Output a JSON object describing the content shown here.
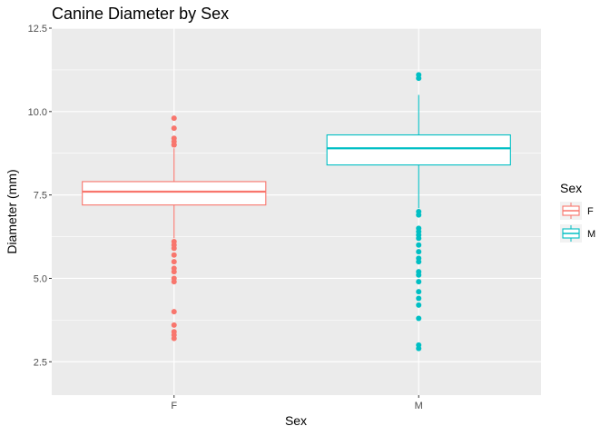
{
  "chart_data": {
    "type": "boxplot",
    "title": "Canine Diameter by Sex",
    "xlabel": "Sex",
    "ylabel": "Diameter (mm)",
    "categories": [
      "F",
      "M"
    ],
    "ylim": [
      1.5,
      12.5
    ],
    "yticks": [
      2.5,
      5.0,
      7.5,
      10.0,
      12.5
    ],
    "ytick_labels": [
      "2.5",
      "5.0",
      "7.5",
      "10.0",
      "12.5"
    ],
    "grid": true,
    "legend": {
      "title": "Sex",
      "placement": "right",
      "entries": [
        "F",
        "M"
      ]
    },
    "colors": {
      "F": "#f8766d",
      "M": "#00bfc4",
      "panel": "#ebebeb",
      "grid": "#ffffff"
    },
    "series": [
      {
        "name": "F",
        "q1": 7.2,
        "median": 7.6,
        "q3": 7.9,
        "whisker_low": 6.2,
        "whisker_high": 8.9,
        "outliers": [
          9.8,
          9.5,
          9.2,
          9.1,
          9.0,
          9.0,
          6.1,
          6.0,
          5.9,
          5.7,
          5.5,
          5.3,
          5.2,
          5.0,
          4.9,
          4.0,
          3.6,
          3.4,
          3.3,
          3.2
        ]
      },
      {
        "name": "M",
        "q1": 8.4,
        "median": 8.9,
        "q3": 9.3,
        "whisker_low": 7.1,
        "whisker_high": 10.5,
        "outliers": [
          11.1,
          11.0,
          7.0,
          6.9,
          6.5,
          6.4,
          6.3,
          6.2,
          6.0,
          5.8,
          5.6,
          5.5,
          5.2,
          5.1,
          4.9,
          4.6,
          4.4,
          4.2,
          3.8,
          3.0,
          2.9
        ]
      }
    ]
  }
}
